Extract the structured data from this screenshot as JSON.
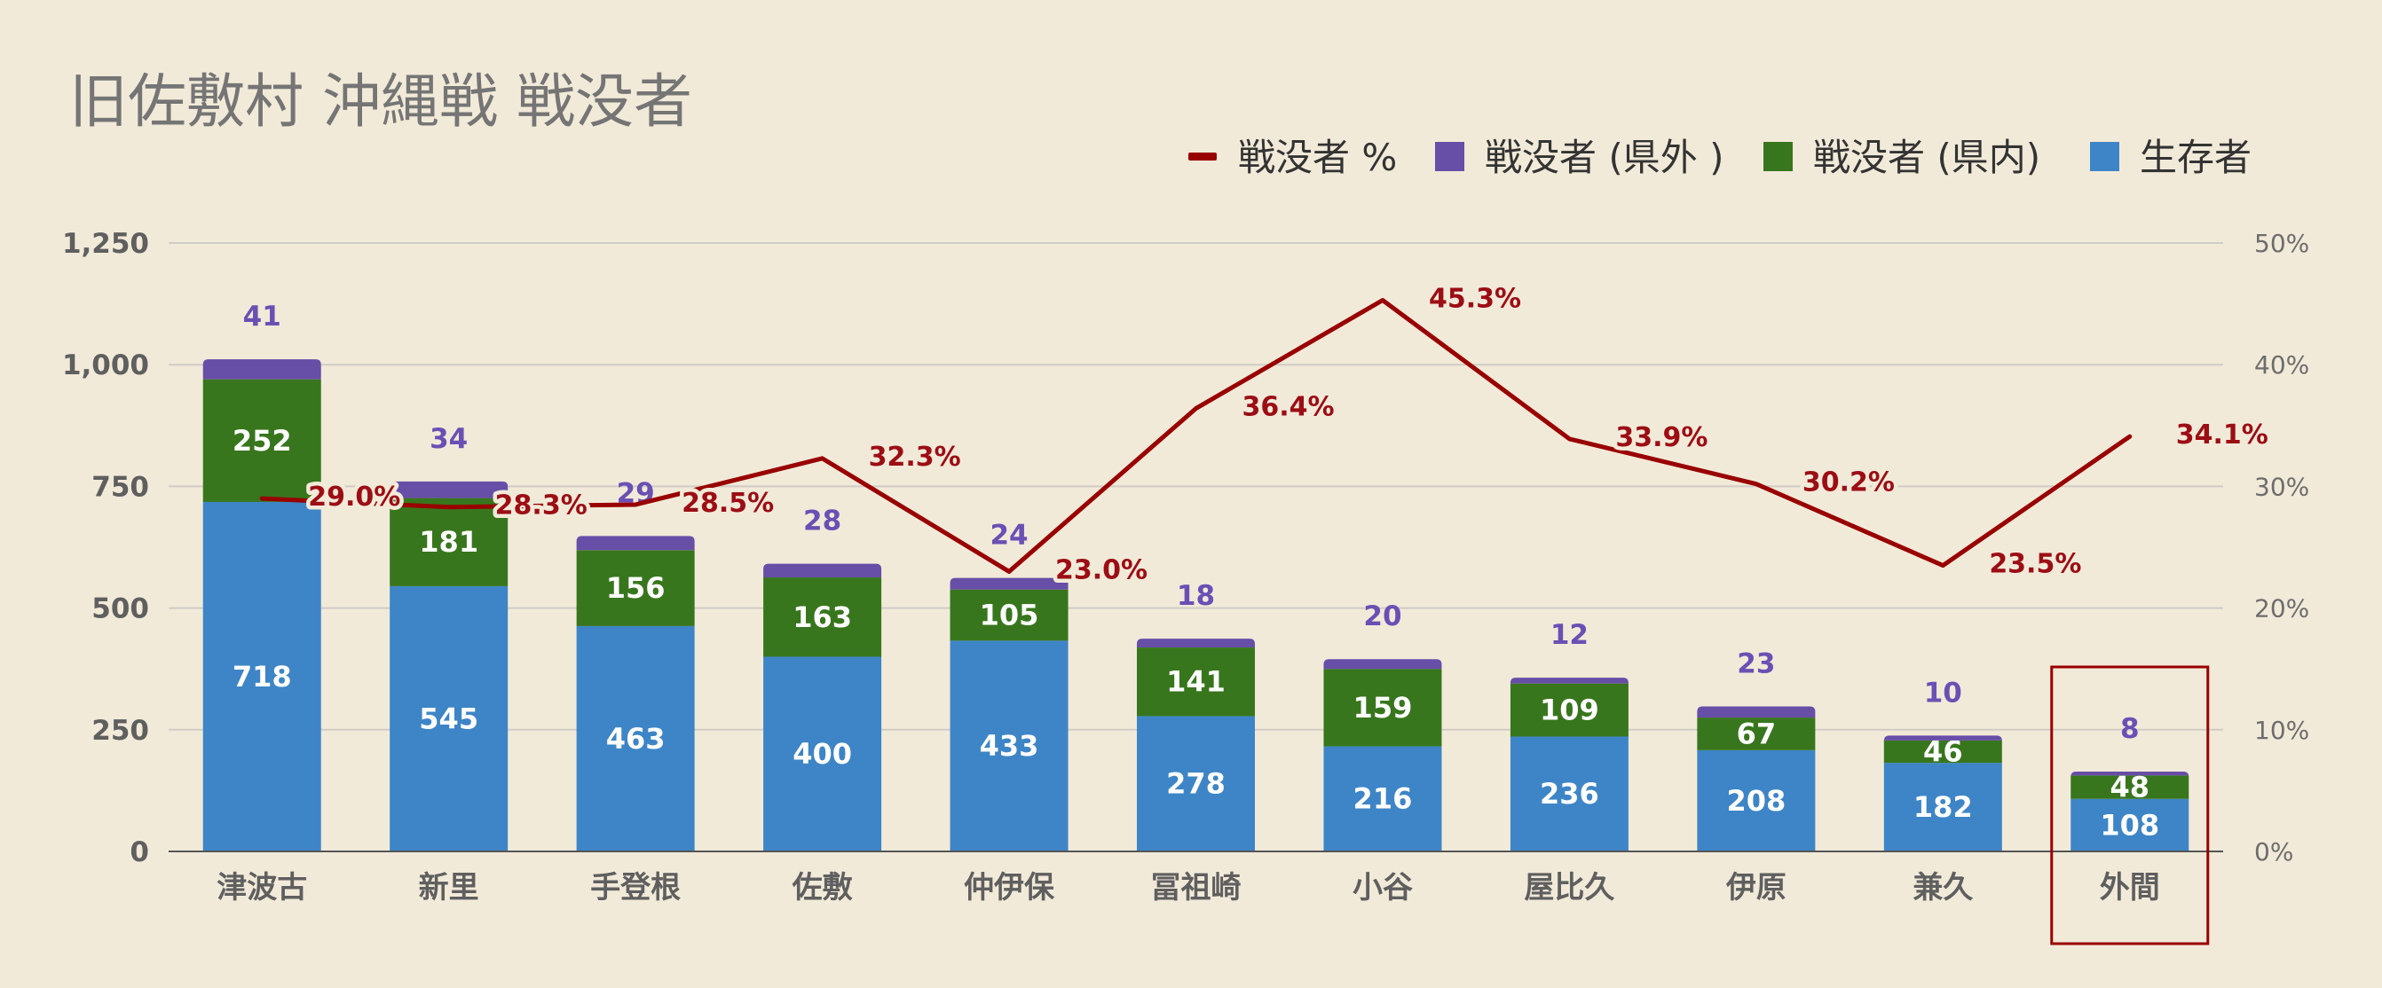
{
  "chart_data": {
    "type": "bar",
    "stacked": true,
    "title": "旧佐敷村 沖縄戦 戦没者",
    "categories": [
      "津波古",
      "新里",
      "手登根",
      "佐敷",
      "仲伊保",
      "冨祖崎",
      "小谷",
      "屋比久",
      "伊原",
      "兼久",
      "外間"
    ],
    "series": [
      {
        "name": "生存者",
        "color": "#3d85c6",
        "values": [
          718,
          545,
          463,
          400,
          433,
          278,
          216,
          236,
          208,
          182,
          108
        ]
      },
      {
        "name": "戦没者 (県内)",
        "color": "#38761d",
        "values": [
          252,
          181,
          156,
          163,
          105,
          141,
          159,
          109,
          67,
          46,
          48
        ]
      },
      {
        "name": "戦没者 (県外 )",
        "color": "#674ea7",
        "values": [
          41,
          34,
          29,
          28,
          24,
          18,
          20,
          12,
          23,
          10,
          8
        ]
      }
    ],
    "line_series": {
      "name": "戦没者 %",
      "color": "#990000",
      "axis": "right",
      "values": [
        29.0,
        28.3,
        28.5,
        32.3,
        23.0,
        36.4,
        45.3,
        33.9,
        30.2,
        23.5,
        34.1
      ],
      "labels": [
        "29.0%",
        "28.3%",
        "28.5%",
        "32.3%",
        "23.0%",
        "36.4%",
        "45.3%",
        "33.9%",
        "30.2%",
        "23.5%",
        "34.1%"
      ]
    },
    "legend_order": [
      "戦没者 %",
      "戦没者 (県外 )",
      "戦没者 (県内)",
      "生存者"
    ],
    "legend_position": "top-right",
    "y_left": {
      "min": 0,
      "max": 1250,
      "ticks": [
        0,
        250,
        500,
        750,
        1000,
        1250
      ],
      "tick_labels": [
        "0",
        "250",
        "500",
        "750",
        "1,000",
        "1,250"
      ]
    },
    "y_right": {
      "min": 0,
      "max": 50,
      "ticks": [
        0,
        10,
        20,
        30,
        40,
        50
      ],
      "tick_labels": [
        "0%",
        "10%",
        "20%",
        "30%",
        "40%",
        "50%"
      ]
    },
    "grid": true,
    "highlighted_category": "外間",
    "highlight_color": "#990000",
    "grid_color": "#d0ccc6",
    "axis_color": "#555555"
  }
}
